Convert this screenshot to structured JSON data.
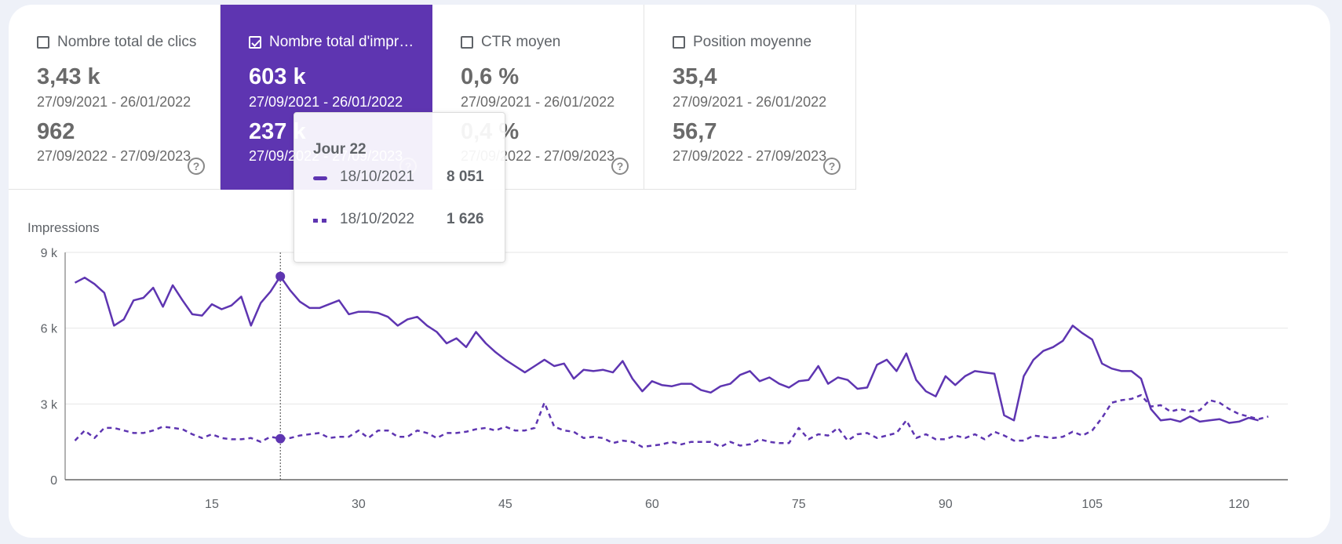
{
  "cards": [
    {
      "title": "Nombre total de clics",
      "checked": false,
      "value_current": "3,43 k",
      "date_current": "27/09/2021 - 26/01/2022",
      "value_previous": "962",
      "date_previous": "27/09/2022 - 27/09/2023",
      "help": "?"
    },
    {
      "title": "Nombre total d'impressions",
      "checked": true,
      "value_current": "603 k",
      "date_current": "27/09/2021 - 26/01/2022",
      "value_previous": "237 k",
      "date_previous": "27/09/2022 - 27/09/2023",
      "help": "?"
    },
    {
      "title": "CTR moyen",
      "checked": false,
      "value_current": "0,6 %",
      "date_current": "27/09/2021 - 26/01/2022",
      "value_previous": "0,4 %",
      "date_previous": "27/09/2022 - 27/09/2023",
      "help": "?"
    },
    {
      "title": "Position moyenne",
      "checked": false,
      "value_current": "35,4",
      "date_current": "27/09/2021 - 26/01/2022",
      "value_previous": "56,7",
      "date_previous": "27/09/2022 - 27/09/2023",
      "help": "?"
    }
  ],
  "tooltip": {
    "title": "Jour 22",
    "rows": [
      {
        "date": "18/10/2021",
        "value": "8 051"
      },
      {
        "date": "18/10/2022",
        "value": "1 626"
      }
    ]
  },
  "colors": {
    "accent": "#5e35b1",
    "series": "#5e35b1",
    "text": "#5f6368",
    "grid": "#e6e6e6"
  },
  "chart_data": {
    "type": "line",
    "title": "",
    "ylabel": "Impressions",
    "xlabel": "",
    "ylim": [
      0,
      9000
    ],
    "xlim": [
      0,
      125
    ],
    "y_ticks": [
      {
        "value": 0,
        "label": "0"
      },
      {
        "value": 3000,
        "label": "3 k"
      },
      {
        "value": 6000,
        "label": "6 k"
      },
      {
        "value": 9000,
        "label": "9 k"
      }
    ],
    "x_ticks": [
      15,
      30,
      45,
      60,
      75,
      90,
      105,
      120
    ],
    "highlight_x": 22,
    "series": [
      {
        "name": "27/09/2021 - 26/01/2022",
        "style": "solid",
        "values": [
          7800,
          8000,
          7750,
          7400,
          6100,
          6350,
          7100,
          7200,
          7600,
          6850,
          7700,
          7100,
          6550,
          6500,
          6950,
          6750,
          6900,
          7250,
          6100,
          7000,
          7450,
          8051,
          7500,
          7050,
          6800,
          6800,
          6950,
          7100,
          6550,
          6650,
          6650,
          6600,
          6450,
          6100,
          6350,
          6450,
          6100,
          5850,
          5400,
          5600,
          5250,
          5850,
          5400,
          5050,
          4750,
          4500,
          4250,
          4500,
          4750,
          4500,
          4600,
          4000,
          4350,
          4300,
          4350,
          4250,
          4700,
          4000,
          3500,
          3900,
          3750,
          3700,
          3800,
          3800,
          3550,
          3450,
          3700,
          3800,
          4150,
          4300,
          3900,
          4050,
          3800,
          3650,
          3900,
          3950,
          4500,
          3800,
          4050,
          3950,
          3600,
          3650,
          4550,
          4750,
          4300,
          5000,
          3950,
          3500,
          3300,
          4100,
          3750,
          4100,
          4300,
          4250,
          4200,
          2550,
          2350,
          4100,
          4750,
          5100,
          5250,
          5500,
          6100,
          5800,
          5550,
          4600,
          4400,
          4300,
          4300,
          4000,
          2800,
          2350,
          2400,
          2300,
          2500,
          2300,
          2350,
          2400,
          2250,
          2300,
          2450,
          2350
        ]
      },
      {
        "name": "27/09/2022 - 27/09/2023",
        "style": "dashed",
        "values": [
          1550,
          1950,
          1650,
          2050,
          2050,
          1950,
          1850,
          1850,
          1950,
          2100,
          2050,
          2000,
          1800,
          1650,
          1800,
          1650,
          1600,
          1600,
          1650,
          1500,
          1700,
          1626,
          1650,
          1750,
          1800,
          1850,
          1650,
          1700,
          1700,
          1950,
          1650,
          1950,
          1950,
          1700,
          1700,
          1950,
          1850,
          1650,
          1850,
          1850,
          1900,
          2000,
          2050,
          1950,
          2100,
          1950,
          1950,
          2050,
          3050,
          2100,
          1950,
          1900,
          1650,
          1700,
          1650,
          1450,
          1550,
          1500,
          1300,
          1350,
          1400,
          1500,
          1400,
          1500,
          1500,
          1500,
          1300,
          1500,
          1350,
          1400,
          1600,
          1500,
          1450,
          1450,
          2050,
          1600,
          1800,
          1750,
          2050,
          1550,
          1800,
          1850,
          1650,
          1750,
          1850,
          2350,
          1650,
          1800,
          1600,
          1600,
          1750,
          1650,
          1800,
          1600,
          1900,
          1750,
          1550,
          1550,
          1750,
          1700,
          1650,
          1700,
          1900,
          1750,
          1950,
          2450,
          3050,
          3150,
          3200,
          3350,
          2900,
          2950,
          2700,
          2800,
          2700,
          2750,
          3150,
          3050,
          2800,
          2600,
          2500,
          2400,
          2500
        ]
      }
    ]
  }
}
